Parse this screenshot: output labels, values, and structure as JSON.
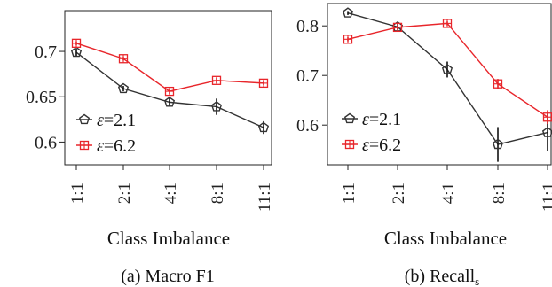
{
  "chart_data": [
    {
      "type": "line",
      "caption": "(a) Macro F1",
      "xlabel": "Class Imbalance",
      "ylabel": "",
      "categories": [
        "1:1",
        "2:1",
        "4:1",
        "8:1",
        "11:1"
      ],
      "ylim": [
        0.575,
        0.745
      ],
      "yticks": [
        0.6,
        0.65,
        0.7
      ],
      "ytick_labels": [
        "0.6",
        "0.65",
        "0.7"
      ],
      "legend_position": "bottom-left",
      "series": [
        {
          "name": "ε=2.1",
          "epsilon": "2.1",
          "color": "#333333",
          "marker": "pentagon",
          "values": [
            0.699,
            0.659,
            0.644,
            0.639,
            0.616
          ],
          "errors": [
            0.004,
            0.003,
            0.005,
            0.009,
            0.007
          ]
        },
        {
          "name": "ε=6.2",
          "epsilon": "6.2",
          "color": "#e8262b",
          "marker": "square-cross",
          "values": [
            0.709,
            0.692,
            0.656,
            0.668,
            0.665
          ],
          "errors": [
            0.002,
            0.002,
            0.003,
            0.003,
            0.002
          ]
        }
      ]
    },
    {
      "type": "line",
      "caption_main": "(b) Recall",
      "caption_sub": "s",
      "xlabel": "Class Imbalance",
      "ylabel": "",
      "categories": [
        "1:1",
        "2:1",
        "4:1",
        "8:1",
        "11:1"
      ],
      "ylim": [
        0.52,
        0.845
      ],
      "yticks": [
        0.6,
        0.7,
        0.8
      ],
      "ytick_labels": [
        "0.6",
        "0.7",
        "0.8"
      ],
      "legend_position": "bottom-left",
      "series": [
        {
          "name": "ε=2.1",
          "epsilon": "2.1",
          "color": "#333333",
          "marker": "pentagon",
          "values": [
            0.826,
            0.798,
            0.712,
            0.561,
            0.585
          ],
          "errors": [
            0.004,
            0.006,
            0.016,
            0.035,
            0.038
          ]
        },
        {
          "name": "ε=6.2",
          "epsilon": "6.2",
          "color": "#e8262b",
          "marker": "square-cross",
          "values": [
            0.773,
            0.797,
            0.805,
            0.683,
            0.616
          ],
          "errors": [
            0.004,
            0.004,
            0.004,
            0.01,
            0.014
          ]
        }
      ]
    }
  ]
}
